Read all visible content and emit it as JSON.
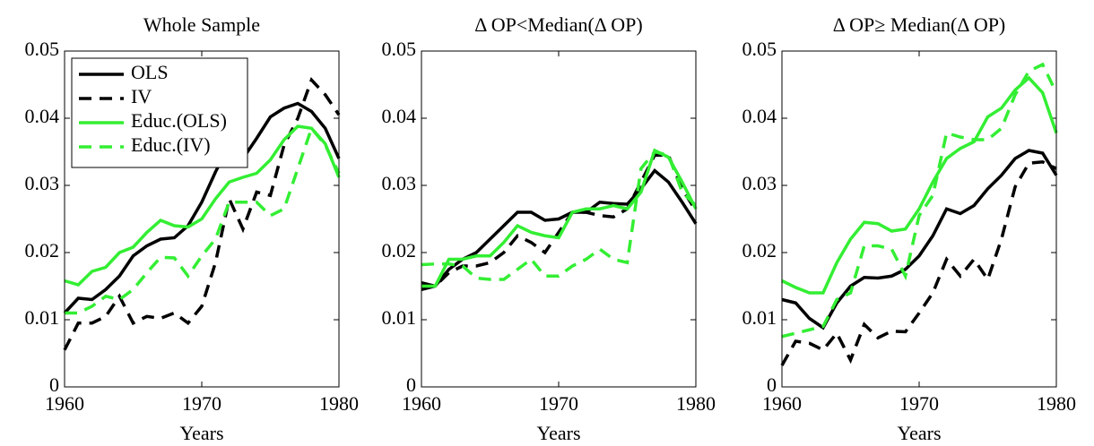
{
  "chart_data": [
    {
      "type": "line",
      "title": "Whole Sample",
      "xlabel": "Years",
      "x": [
        1960,
        1961,
        1962,
        1963,
        1964,
        1965,
        1966,
        1967,
        1968,
        1969,
        1970,
        1971,
        1972,
        1973,
        1974,
        1975,
        1976,
        1977,
        1978,
        1979,
        1980
      ],
      "xlim": [
        1960,
        1980
      ],
      "xticks": [
        1960,
        1970,
        1980
      ],
      "ylim": [
        0,
        0.05
      ],
      "yticks": [
        0,
        0.01,
        0.02,
        0.03,
        0.04,
        0.05
      ],
      "legend": "upper left",
      "series": [
        {
          "name": "OLS",
          "color": "#000000",
          "dash": "solid",
          "values": [
            0.011,
            0.0132,
            0.013,
            0.0145,
            0.0165,
            0.0195,
            0.021,
            0.022,
            0.0222,
            0.024,
            0.0275,
            0.032,
            0.036,
            0.034,
            0.037,
            0.0402,
            0.0415,
            0.0422,
            0.041,
            0.0385,
            0.034
          ]
        },
        {
          "name": "IV",
          "color": "#000000",
          "dash": "dashed",
          "values": [
            0.0055,
            0.0095,
            0.0095,
            0.0105,
            0.0135,
            0.0095,
            0.0105,
            0.0102,
            0.011,
            0.0095,
            0.012,
            0.0185,
            0.028,
            0.0235,
            0.029,
            0.0285,
            0.036,
            0.04,
            0.0457,
            0.0435,
            0.0405
          ]
        },
        {
          "name": "Educ.(OLS)",
          "color": "#33ee33",
          "dash": "solid",
          "values": [
            0.0158,
            0.0152,
            0.0172,
            0.0178,
            0.02,
            0.0208,
            0.023,
            0.0248,
            0.024,
            0.0238,
            0.025,
            0.028,
            0.0305,
            0.0312,
            0.0318,
            0.0338,
            0.0368,
            0.0388,
            0.0385,
            0.0362,
            0.0312
          ]
        },
        {
          "name": "Educ.(IV)",
          "color": "#33ee33",
          "dash": "dashed",
          "values": [
            0.011,
            0.011,
            0.012,
            0.0135,
            0.013,
            0.0145,
            0.017,
            0.0193,
            0.0192,
            0.0165,
            0.0195,
            0.022,
            0.0275,
            0.0275,
            0.0275,
            0.0255,
            0.0265,
            0.0325,
            0.0385,
            0.036,
            0.0318
          ]
        }
      ]
    },
    {
      "type": "line",
      "title": "Δ OP<Median(Δ OP)",
      "xlabel": "Years",
      "x": [
        1960,
        1961,
        1962,
        1963,
        1964,
        1965,
        1966,
        1967,
        1968,
        1969,
        1970,
        1971,
        1972,
        1973,
        1974,
        1975,
        1976,
        1977,
        1978,
        1979,
        1980
      ],
      "xlim": [
        1960,
        1980
      ],
      "xticks": [
        1960,
        1970,
        1980
      ],
      "ylim": [
        0,
        0.05
      ],
      "yticks": [
        0,
        0.01,
        0.02,
        0.03,
        0.04,
        0.05
      ],
      "series": [
        {
          "color": "#000000",
          "dash": "solid",
          "values": [
            0.0145,
            0.015,
            0.0175,
            0.019,
            0.02,
            0.022,
            0.024,
            0.026,
            0.026,
            0.0248,
            0.025,
            0.026,
            0.026,
            0.0275,
            0.0273,
            0.0272,
            0.0295,
            0.0322,
            0.0305,
            0.0275,
            0.0243
          ]
        },
        {
          "color": "#000000",
          "dash": "dashed",
          "values": [
            0.0155,
            0.015,
            0.017,
            0.018,
            0.018,
            0.0185,
            0.02,
            0.0225,
            0.0215,
            0.02,
            0.023,
            0.026,
            0.026,
            0.0255,
            0.0253,
            0.0265,
            0.0305,
            0.0345,
            0.0345,
            0.0295,
            0.0262
          ]
        },
        {
          "color": "#33ee33",
          "dash": "solid",
          "values": [
            0.015,
            0.015,
            0.019,
            0.019,
            0.0195,
            0.0195,
            0.0215,
            0.024,
            0.023,
            0.0225,
            0.0222,
            0.026,
            0.0265,
            0.0265,
            0.027,
            0.0265,
            0.029,
            0.0352,
            0.0342,
            0.0305,
            0.0265
          ]
        },
        {
          "color": "#33ee33",
          "dash": "dashed",
          "values": [
            0.0182,
            0.0183,
            0.0183,
            0.018,
            0.0162,
            0.016,
            0.016,
            0.0175,
            0.019,
            0.0165,
            0.0165,
            0.018,
            0.019,
            0.0205,
            0.019,
            0.0185,
            0.0325,
            0.035,
            0.0345,
            0.029,
            0.027
          ]
        }
      ]
    },
    {
      "type": "line",
      "title": "Δ OP≥ Median(Δ OP)",
      "xlabel": "Years",
      "x": [
        1960,
        1961,
        1962,
        1963,
        1964,
        1965,
        1966,
        1967,
        1968,
        1969,
        1970,
        1971,
        1972,
        1973,
        1974,
        1975,
        1976,
        1977,
        1978,
        1979,
        1980
      ],
      "xlim": [
        1960,
        1980
      ],
      "xticks": [
        1960,
        1970,
        1980
      ],
      "ylim": [
        0,
        0.05
      ],
      "yticks": [
        0,
        0.01,
        0.02,
        0.03,
        0.04,
        0.05
      ],
      "series": [
        {
          "color": "#000000",
          "dash": "solid",
          "values": [
            0.013,
            0.0125,
            0.0102,
            0.0088,
            0.0125,
            0.015,
            0.0163,
            0.0162,
            0.0165,
            0.0175,
            0.0195,
            0.0225,
            0.0265,
            0.0258,
            0.027,
            0.0295,
            0.0315,
            0.034,
            0.0352,
            0.0348,
            0.0315
          ]
        },
        {
          "color": "#000000",
          "dash": "dashed",
          "values": [
            0.0032,
            0.0068,
            0.0065,
            0.0055,
            0.008,
            0.004,
            0.0093,
            0.0073,
            0.0083,
            0.0082,
            0.011,
            0.014,
            0.019,
            0.0165,
            0.019,
            0.016,
            0.022,
            0.0298,
            0.0333,
            0.0335,
            0.0325
          ]
        },
        {
          "color": "#33ee33",
          "dash": "solid",
          "values": [
            0.0158,
            0.0148,
            0.014,
            0.014,
            0.0185,
            0.022,
            0.0245,
            0.0243,
            0.0232,
            0.0235,
            0.0265,
            0.0305,
            0.034,
            0.0355,
            0.0365,
            0.0402,
            0.0415,
            0.0442,
            0.046,
            0.0438,
            0.0378
          ]
        },
        {
          "color": "#33ee33",
          "dash": "dashed",
          "values": [
            0.0075,
            0.008,
            0.0085,
            0.009,
            0.013,
            0.014,
            0.021,
            0.021,
            0.0205,
            0.0165,
            0.0255,
            0.0285,
            0.0378,
            0.0372,
            0.0368,
            0.0368,
            0.0385,
            0.0435,
            0.047,
            0.048,
            0.0438
          ]
        }
      ]
    }
  ]
}
